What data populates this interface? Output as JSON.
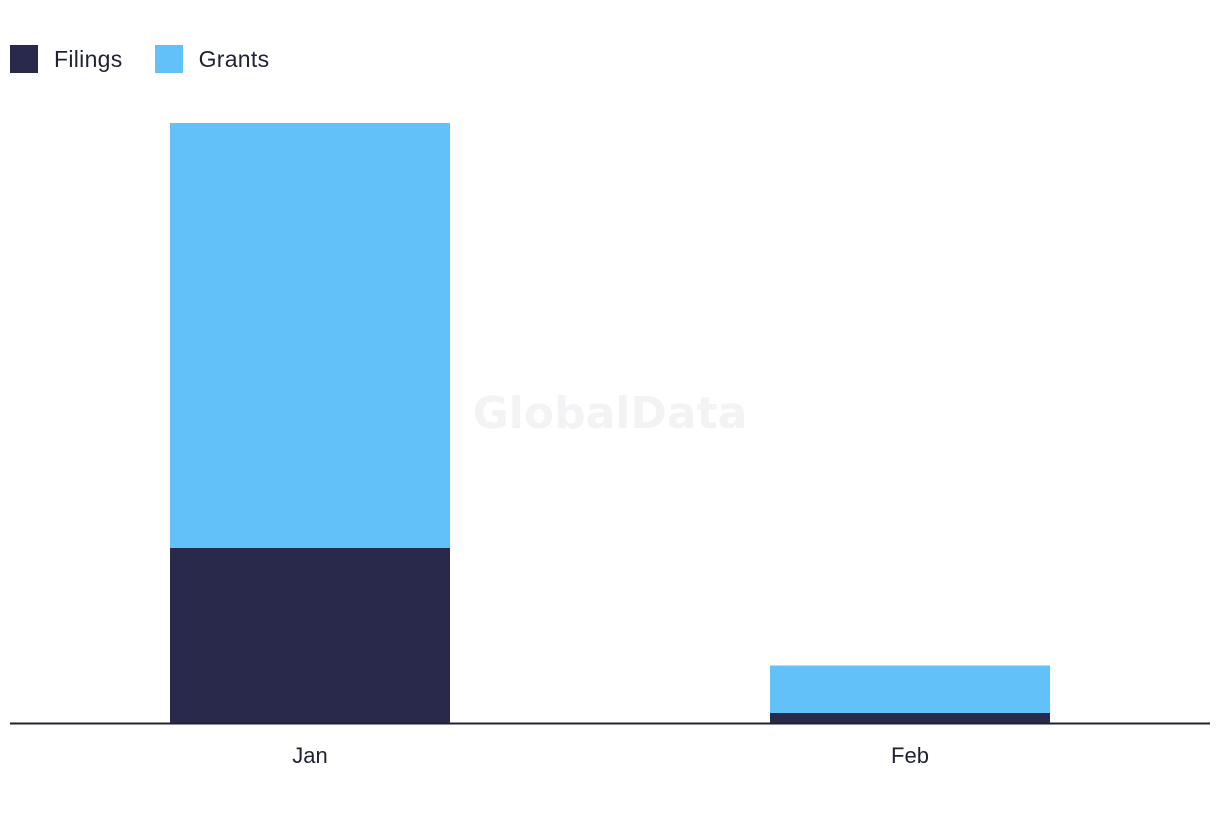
{
  "chart_data": {
    "type": "bar",
    "stacked": true,
    "categories": [
      "Jan",
      "Feb"
    ],
    "series": [
      {
        "name": "Filings",
        "color": "#29294b",
        "values": [
          35,
          2
        ]
      },
      {
        "name": "Grants",
        "color": "#62c1f9",
        "values": [
          85,
          9.5
        ]
      }
    ],
    "ylim": [
      0,
      120
    ],
    "grid": false,
    "legend_position": "top-left",
    "watermark": "GlobalData"
  }
}
